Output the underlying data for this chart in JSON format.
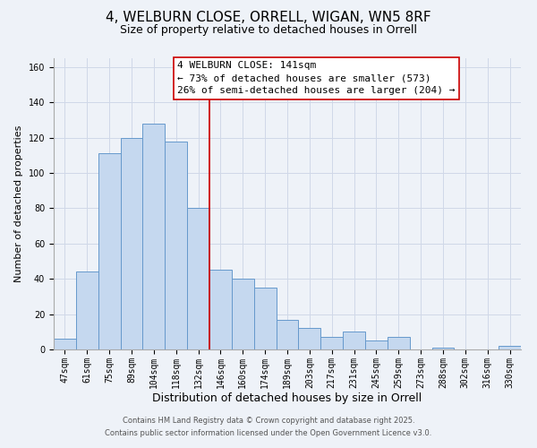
{
  "title": "4, WELBURN CLOSE, ORRELL, WIGAN, WN5 8RF",
  "subtitle": "Size of property relative to detached houses in Orrell",
  "xlabel": "Distribution of detached houses by size in Orrell",
  "ylabel": "Number of detached properties",
  "bar_labels": [
    "47sqm",
    "61sqm",
    "75sqm",
    "89sqm",
    "104sqm",
    "118sqm",
    "132sqm",
    "146sqm",
    "160sqm",
    "174sqm",
    "189sqm",
    "203sqm",
    "217sqm",
    "231sqm",
    "245sqm",
    "259sqm",
    "273sqm",
    "288sqm",
    "302sqm",
    "316sqm",
    "330sqm"
  ],
  "bar_values": [
    6,
    44,
    111,
    120,
    128,
    118,
    80,
    45,
    40,
    35,
    17,
    12,
    7,
    10,
    5,
    7,
    0,
    1,
    0,
    0,
    2
  ],
  "bar_color": "#c5d8ef",
  "bar_edge_color": "#6699cc",
  "vline_x_idx": 7,
  "vline_color": "#cc0000",
  "annotation_line1": "4 WELBURN CLOSE: 141sqm",
  "annotation_line2": "← 73% of detached houses are smaller (573)",
  "annotation_line3": "26% of semi-detached houses are larger (204) →",
  "annotation_box_color": "#ffffff",
  "annotation_box_edge_color": "#cc0000",
  "ylim": [
    0,
    165
  ],
  "yticks": [
    0,
    20,
    40,
    60,
    80,
    100,
    120,
    140,
    160
  ],
  "grid_color": "#d0d8e8",
  "background_color": "#eef2f8",
  "footer_line1": "Contains HM Land Registry data © Crown copyright and database right 2025.",
  "footer_line2": "Contains public sector information licensed under the Open Government Licence v3.0.",
  "title_fontsize": 11,
  "subtitle_fontsize": 9,
  "xlabel_fontsize": 9,
  "ylabel_fontsize": 8,
  "tick_fontsize": 7,
  "annotation_fontsize": 8,
  "footer_fontsize": 6
}
